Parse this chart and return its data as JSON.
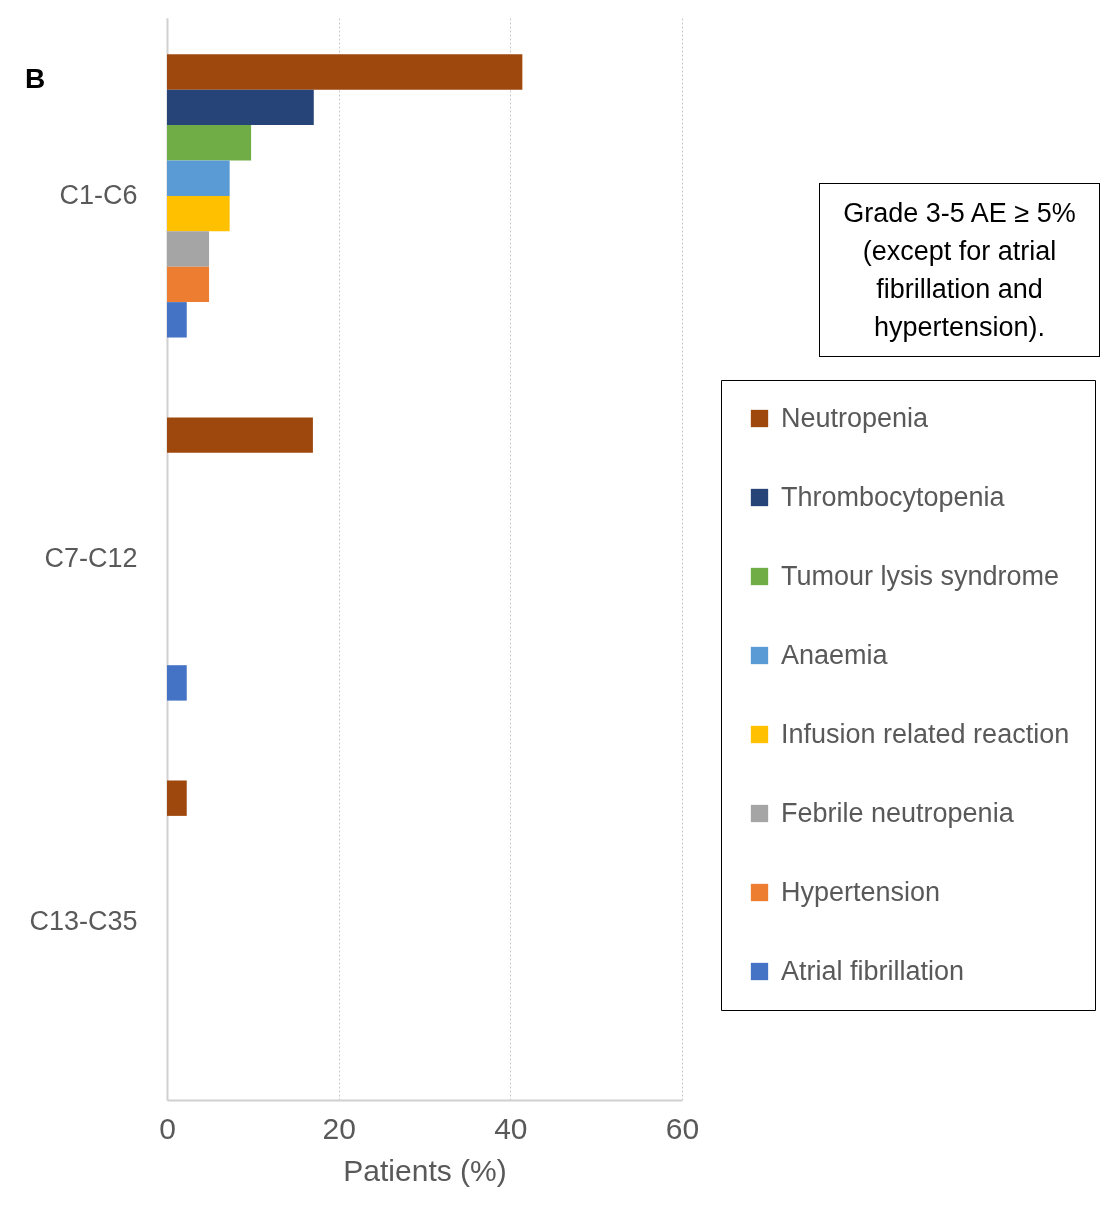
{
  "chart_data": {
    "type": "bar",
    "orientation": "horizontal",
    "title": "B",
    "xlabel": "Patients (%)",
    "categories": [
      "C1-C6",
      "C7-C12",
      "C13-C35"
    ],
    "series": [
      {
        "name": "Neutropenia",
        "color": "#9e480e",
        "values": [
          41.4,
          17.0,
          2.3
        ]
      },
      {
        "name": "Thrombocytopenia",
        "color": "#264478",
        "values": [
          17.1,
          null,
          null
        ]
      },
      {
        "name": "Tumour lysis syndrome",
        "color": "#70ad47",
        "values": [
          9.8,
          null,
          null
        ]
      },
      {
        "name": "Anaemia",
        "color": "#5b9bd5",
        "values": [
          7.3,
          null,
          null
        ]
      },
      {
        "name": "Infusion related reaction",
        "color": "#ffc000",
        "values": [
          7.3,
          null,
          null
        ]
      },
      {
        "name": "Febrile neutropenia",
        "color": "#a5a5a5",
        "values": [
          4.9,
          null,
          null
        ]
      },
      {
        "name": "Hypertension",
        "color": "#ed7d31",
        "values": [
          4.9,
          null,
          null
        ]
      },
      {
        "name": "Atrial fibrillation",
        "color": "#4472c4",
        "values": [
          2.3,
          2.3,
          null
        ]
      }
    ],
    "xlim": [
      0,
      60
    ],
    "xticks": [
      0,
      20,
      40,
      60
    ],
    "grid": "x",
    "legend": "right",
    "annotations": [
      "Grade 3-5 AE ≥ 5% (except for atrial fibrillation and hypertension)."
    ]
  }
}
